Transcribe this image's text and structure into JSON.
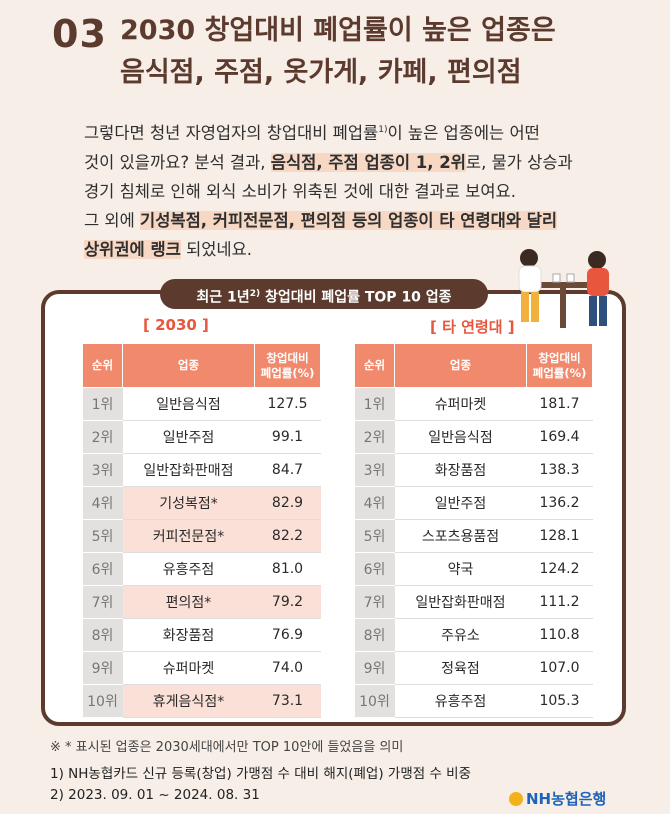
{
  "header": {
    "number": "03",
    "title_line1": "2030 창업대비 폐업률이 높은 업종은",
    "title_line2": "음식점, 주점, 옷가게, 카페, 편의점"
  },
  "intro": {
    "line1_a": "그렇다면 청년 자영업자의 창업대비 폐업률",
    "line1_sup": "1)",
    "line1_b": "이 높은 업종에는 어떤",
    "line2_a": "것이 있을까요? 분석 결과, ",
    "line2_hl": "음식점, 주점 업종이 1, 2위",
    "line2_b": "로, 물가 상승과",
    "line3": "경기 침체로 인해 외식 소비가 위축된 것에 대한 결과로 보여요.",
    "line4_a": "그 외에 ",
    "line4_hl": "기성복점, 커피전문점, 편의점 등의 업종이 타 연령대와 달리",
    "line5_hl": "상위권에 랭크",
    "line5_b": " 되었네요."
  },
  "badge": {
    "text_a": "최근 1년",
    "sup": "2)",
    "text_b": " 창업대비 폐업률 TOP 10 업종"
  },
  "colors": {
    "brown": "#5c3a2e",
    "coral": "#f18a6c",
    "accent_red": "#e8573d",
    "highlight": "#fbe0d7",
    "nh_blue": "#1e63b8"
  },
  "table_2030": {
    "tag": "[ 2030 ]",
    "headers": {
      "rank": "순위",
      "name": "업종",
      "value_1": "창업대비",
      "value_2": "폐업률(%)"
    },
    "rows": [
      {
        "rank": "1위",
        "name": "일반음식점",
        "value": "127.5"
      },
      {
        "rank": "2위",
        "name": "일반주점",
        "value": "99.1"
      },
      {
        "rank": "3위",
        "name": "일반잡화판매점",
        "value": "84.7"
      },
      {
        "rank": "4위",
        "name": "기성복점*",
        "value": "82.9"
      },
      {
        "rank": "5위",
        "name": "커피전문점*",
        "value": "82.2"
      },
      {
        "rank": "6위",
        "name": "유흥주점",
        "value": "81.0"
      },
      {
        "rank": "7위",
        "name": "편의점*",
        "value": "79.2"
      },
      {
        "rank": "8위",
        "name": "화장품점",
        "value": "76.9"
      },
      {
        "rank": "9위",
        "name": "슈퍼마켓",
        "value": "74.0"
      },
      {
        "rank": "10위",
        "name": "휴게음식점*",
        "value": "73.1"
      }
    ]
  },
  "table_other": {
    "tag": "[ 타 연령대 ]",
    "headers": {
      "rank": "순위",
      "name": "업종",
      "value_1": "창업대비",
      "value_2": "폐업률(%)"
    },
    "rows": [
      {
        "rank": "1위",
        "name": "슈퍼마켓",
        "value": "181.7"
      },
      {
        "rank": "2위",
        "name": "일반음식점",
        "value": "169.4"
      },
      {
        "rank": "3위",
        "name": "화장품점",
        "value": "138.3"
      },
      {
        "rank": "4위",
        "name": "일반주점",
        "value": "136.2"
      },
      {
        "rank": "5위",
        "name": "스포츠용품점",
        "value": "128.1"
      },
      {
        "rank": "6위",
        "name": "약국",
        "value": "124.2"
      },
      {
        "rank": "7위",
        "name": "일반잡화판매점",
        "value": "111.2"
      },
      {
        "rank": "8위",
        "name": "주유소",
        "value": "110.8"
      },
      {
        "rank": "9위",
        "name": "정육점",
        "value": "107.0"
      },
      {
        "rank": "10위",
        "name": "유흥주점",
        "value": "105.3"
      }
    ]
  },
  "footnotes": {
    "note": "※ * 표시된 업종은 2030세대에서만 TOP 10안에 들었음을 의미",
    "fn1": "1) NH농협카드 신규 등록(창업) 가맹점 수 대비 해지(폐업) 가맹점 수 비중",
    "fn2": "2) 2023. 09. 01 ~ 2024. 08. 31"
  },
  "logo": {
    "text": "NH농협은행"
  }
}
